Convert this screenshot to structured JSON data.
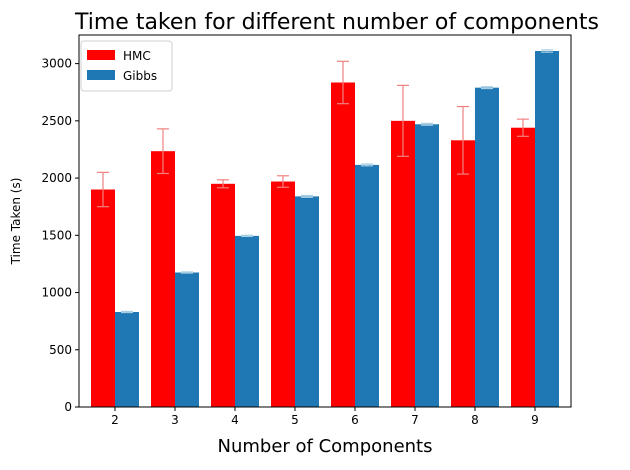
{
  "chart_data": {
    "type": "bar",
    "title": "Time taken for different number of components",
    "xlabel": "Number of Components",
    "ylabel": "Time Taken (s)",
    "categories": [
      "2",
      "3",
      "4",
      "5",
      "6",
      "7",
      "8",
      "9"
    ],
    "ylim": [
      0,
      3250
    ],
    "yticks": [
      0,
      500,
      1000,
      1500,
      2000,
      2500,
      3000
    ],
    "grid": false,
    "legend_position": "top-left",
    "series": [
      {
        "name": "HMC",
        "color": "#ff0000",
        "error_color": "#f08080",
        "values": [
          1900,
          2235,
          1950,
          1970,
          2835,
          2500,
          2330,
          2440
        ],
        "errors": [
          150,
          195,
          35,
          50,
          185,
          310,
          295,
          75
        ]
      },
      {
        "name": "Gibbs",
        "color": "#1f77b4",
        "error_color": "#a6cee3",
        "values": [
          830,
          1175,
          1495,
          1840,
          2115,
          2470,
          2790,
          3110
        ],
        "errors": [
          5,
          5,
          5,
          8,
          8,
          8,
          8,
          10
        ]
      }
    ]
  }
}
